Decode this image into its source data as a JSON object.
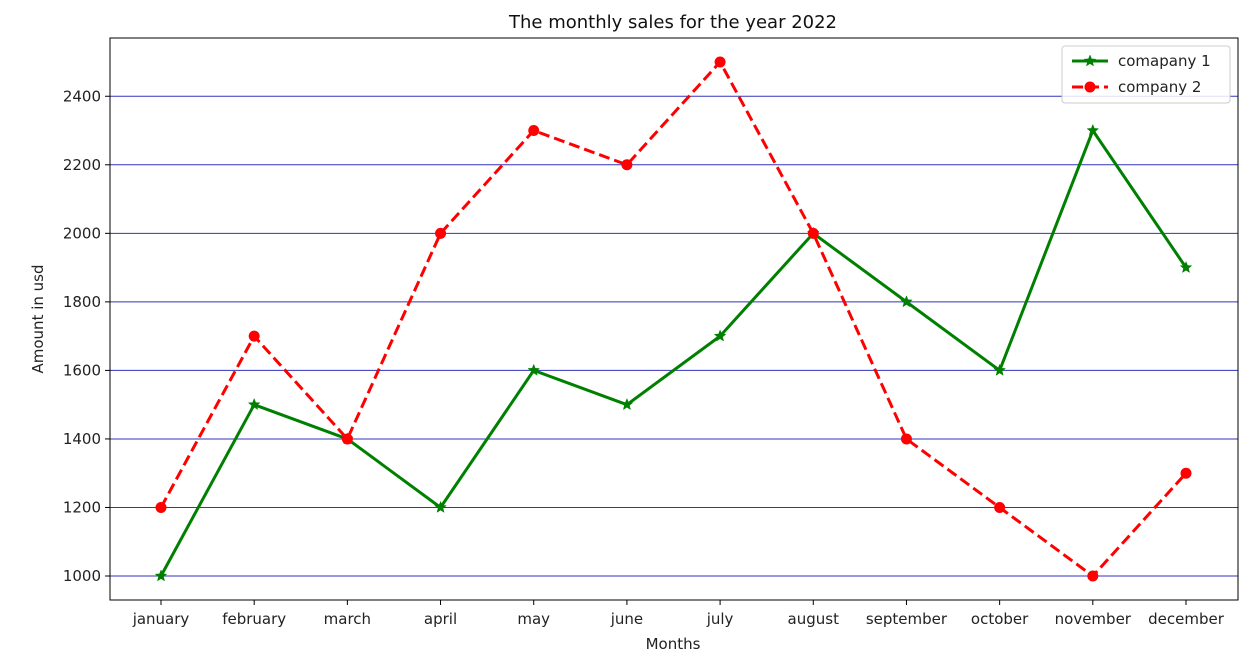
{
  "chart_data": {
    "type": "line",
    "title": "The monthly sales for the year 2022",
    "xlabel": "Months",
    "ylabel": "Amount in usd",
    "categories": [
      "january",
      "february",
      "march",
      "april",
      "may",
      "june",
      "july",
      "august",
      "september",
      "october",
      "november",
      "december"
    ],
    "ylim": [
      930,
      2570
    ],
    "yticks": [
      1000,
      1200,
      1400,
      1600,
      1800,
      2000,
      2200,
      2400
    ],
    "grid": "horizontal",
    "grid_color": "#3333bb",
    "legend_position": "upper right",
    "series": [
      {
        "name": "comapany 1",
        "color": "#008000",
        "line_style": "solid",
        "marker": "star",
        "values": [
          1000,
          1500,
          1400,
          1200,
          1600,
          1500,
          1700,
          2000,
          1800,
          1600,
          2300,
          1900
        ]
      },
      {
        "name": "company 2",
        "color": "#ff0000",
        "line_style": "dashed",
        "marker": "circle",
        "values": [
          1200,
          1700,
          1400,
          2000,
          2300,
          2200,
          2500,
          2000,
          1400,
          1200,
          1000,
          1300
        ]
      }
    ]
  }
}
